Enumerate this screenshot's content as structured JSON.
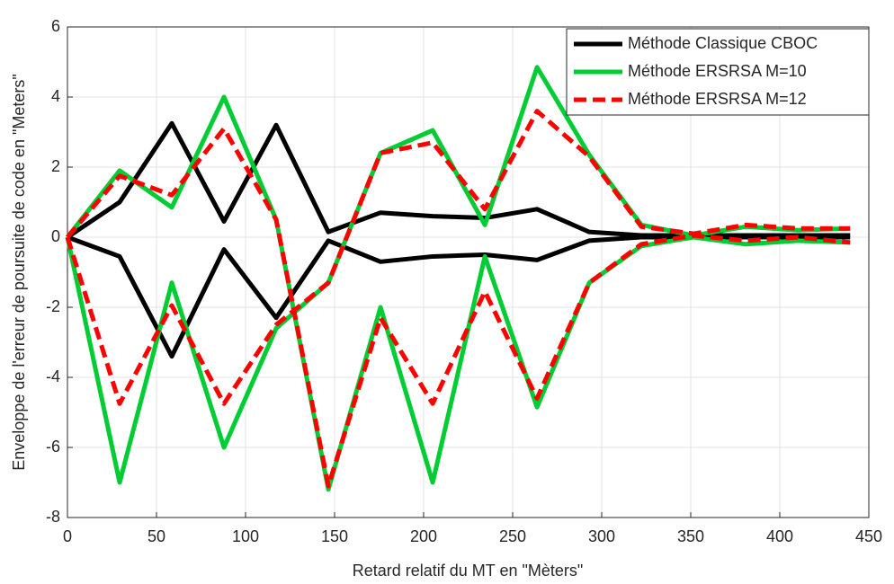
{
  "chart_data": {
    "type": "line",
    "xlabel": "Retard relatif du MT en \"Mèters\"",
    "ylabel": "Enveloppe de l'erreur de poursuite de code en \"Meters\"",
    "x": [
      0,
      29.3,
      58.6,
      87.9,
      117.2,
      146.5,
      175.8,
      205.1,
      234.4,
      263.7,
      293,
      322.3,
      351.6,
      380.9,
      410.2,
      439.5
    ],
    "series": [
      {
        "name": "Méthode Classique CBOC",
        "color": "#000000",
        "dash": "none",
        "values": [
          [
            0,
            1.0,
            3.25,
            0.45,
            3.2,
            0.15,
            0.7,
            0.6,
            0.55,
            0.8,
            0.15,
            0.05,
            0.05,
            0.05,
            0.05,
            0.05
          ],
          [
            0,
            -0.55,
            -3.4,
            -0.35,
            -2.3,
            -0.1,
            -0.7,
            -0.55,
            -0.5,
            -0.65,
            -0.1,
            0,
            0,
            0,
            0,
            0
          ]
        ]
      },
      {
        "name": "Méthode ERSRSA M=10",
        "color": "#00cc33",
        "dash": "none",
        "values": [
          [
            0,
            1.9,
            0.85,
            4.0,
            0.5,
            -7.2,
            -2.0,
            -7.0,
            -0.55,
            -4.85,
            -1.3,
            -0.25,
            0,
            -0.2,
            -0.1,
            -0.15
          ],
          [
            0,
            -7.0,
            -1.3,
            -6.0,
            -2.6,
            -1.3,
            2.4,
            3.05,
            0.35,
            4.85,
            2.35,
            0.35,
            0.05,
            0.3,
            0.2,
            0.25
          ]
        ]
      },
      {
        "name": "Méthode ERSRSA M=12",
        "color": "#ff0000",
        "dash": "14 7",
        "values": [
          [
            0,
            1.75,
            1.2,
            3.1,
            0.5,
            -7.1,
            -2.3,
            -4.75,
            -1.55,
            -4.6,
            -1.3,
            -0.2,
            0.05,
            -0.1,
            0,
            -0.15
          ],
          [
            0,
            -4.75,
            -1.95,
            -4.75,
            -2.5,
            -1.3,
            2.4,
            2.7,
            0.8,
            3.6,
            2.3,
            0.3,
            0.1,
            0.35,
            0.25,
            0.25
          ]
        ]
      }
    ],
    "xlim": [
      0,
      450
    ],
    "xticks": [
      0,
      50,
      100,
      150,
      200,
      250,
      300,
      350,
      400,
      450
    ],
    "ylim": [
      -8,
      6
    ],
    "yticks": [
      -8,
      -6,
      -4,
      -2,
      0,
      2,
      4,
      6
    ],
    "grid": true,
    "legend": "top-right"
  }
}
